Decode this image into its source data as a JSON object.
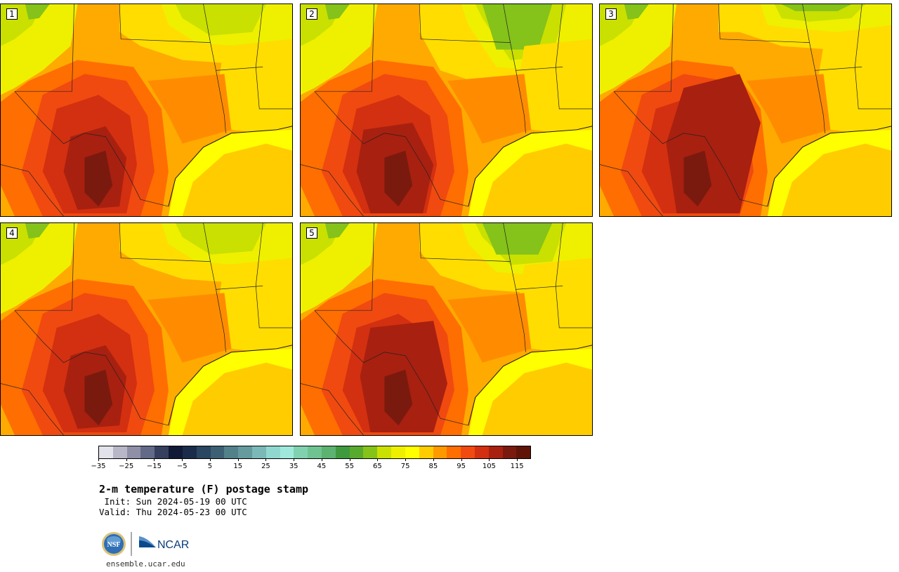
{
  "panels": [
    {
      "label": "1",
      "variant": 1
    },
    {
      "label": "2",
      "variant": 2
    },
    {
      "label": "3",
      "variant": 3
    },
    {
      "label": "4",
      "variant": 4
    },
    {
      "label": "5",
      "variant": 5
    }
  ],
  "colorbar": {
    "unit": "F",
    "min": -35,
    "max": 120,
    "step": 5,
    "tick_values": [
      -35,
      -25,
      -15,
      -5,
      5,
      15,
      25,
      35,
      45,
      55,
      65,
      75,
      85,
      95,
      105,
      115
    ],
    "tick_labels": [
      "−35",
      "−25",
      "−15",
      "−5",
      "5",
      "15",
      "25",
      "35",
      "45",
      "55",
      "65",
      "75",
      "85",
      "95",
      "105",
      "115"
    ],
    "colors": [
      "#e2e2ea",
      "#b7b7c8",
      "#8f90a8",
      "#626a88",
      "#34405e",
      "#101a36",
      "#1a2c4a",
      "#2a4660",
      "#3d5f74",
      "#52818a",
      "#659a9e",
      "#7ab9b8",
      "#90d8cf",
      "#9fe9dc",
      "#7fd1b0",
      "#6fc391",
      "#5cb271",
      "#3f9a3e",
      "#58aa2c",
      "#85c21a",
      "#c9e000",
      "#eef000",
      "#ffff00",
      "#ffcc00",
      "#ff9900",
      "#ff6e00",
      "#f04a10",
      "#d23010",
      "#a82010",
      "#7a1a0e",
      "#601408"
    ]
  },
  "title": "2-m temperature (F) postage stamp",
  "init_line": " Init: Sun 2024-05-19 00 UTC",
  "valid_line": "Valid: Thu 2024-05-23 00 UTC",
  "logos": {
    "nsf": "NSF",
    "ncar": "NCAR"
  },
  "url": "ensemble.ucar.edu"
}
